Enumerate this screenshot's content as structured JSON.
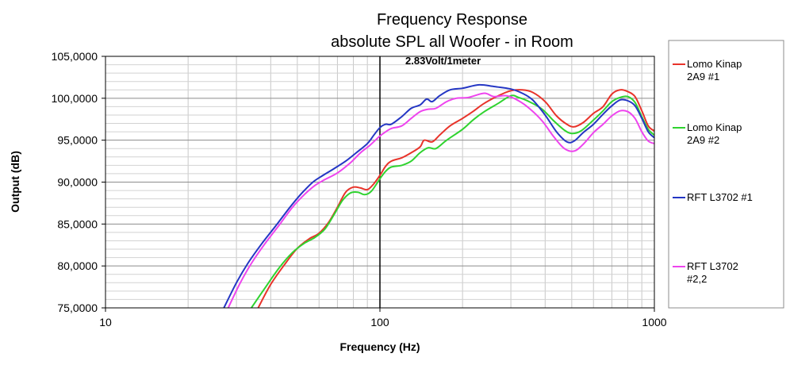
{
  "chart_data": {
    "type": "line",
    "title": "Frequency Response",
    "subtitle": "absolute SPL all Woofer - in Room",
    "xlabel": "Frequency (Hz)",
    "ylabel": "Output (dB)",
    "xscale": "log",
    "xlim": [
      10,
      1000
    ],
    "ylim": [
      75,
      105
    ],
    "xticks": [
      10,
      100,
      1000
    ],
    "xtick_labels": [
      "10",
      "100",
      "1000"
    ],
    "yticks": [
      75,
      80,
      85,
      90,
      95,
      100,
      105
    ],
    "ytick_labels": [
      "75,0000",
      "80,0000",
      "85,0000",
      "90,0000",
      "95,0000",
      "100,0000",
      "105,0000"
    ],
    "grid": true,
    "legend_position": "right",
    "annotation": {
      "text": "2.83Volt/1meter",
      "x": 100
    },
    "series": [
      {
        "name": "Lomo Kinap 2A9 #1",
        "legend_lines": [
          "Lomo Kinap",
          "2A9 #1"
        ],
        "color": "#e8332a",
        "points": [
          [
            36,
            75
          ],
          [
            40,
            77.8
          ],
          [
            45,
            80.2
          ],
          [
            50,
            82.1
          ],
          [
            55,
            83.2
          ],
          [
            60,
            83.9
          ],
          [
            65,
            85.2
          ],
          [
            70,
            87
          ],
          [
            75,
            88.8
          ],
          [
            80,
            89.4
          ],
          [
            85,
            89.3
          ],
          [
            90,
            89.1
          ],
          [
            95,
            89.8
          ],
          [
            100,
            90.8
          ],
          [
            105,
            91.9
          ],
          [
            110,
            92.5
          ],
          [
            120,
            92.9
          ],
          [
            130,
            93.5
          ],
          [
            140,
            94.2
          ],
          [
            145,
            95
          ],
          [
            155,
            94.8
          ],
          [
            165,
            95.6
          ],
          [
            180,
            96.7
          ],
          [
            200,
            97.6
          ],
          [
            220,
            98.5
          ],
          [
            240,
            99.4
          ],
          [
            270,
            100.3
          ],
          [
            300,
            100.9
          ],
          [
            330,
            101
          ],
          [
            360,
            100.7
          ],
          [
            400,
            99.6
          ],
          [
            440,
            97.9
          ],
          [
            480,
            96.9
          ],
          [
            510,
            96.6
          ],
          [
            550,
            97.1
          ],
          [
            600,
            98.2
          ],
          [
            650,
            99
          ],
          [
            700,
            100.5
          ],
          [
            750,
            101
          ],
          [
            800,
            100.8
          ],
          [
            850,
            100.2
          ],
          [
            900,
            98.5
          ],
          [
            950,
            96.7
          ],
          [
            1000,
            96.1
          ]
        ]
      },
      {
        "name": "Lomo Kinap 2A9 #2",
        "legend_lines": [
          "Lomo Kinap",
          "2A9 #2"
        ],
        "color": "#2fd32f",
        "points": [
          [
            34,
            75
          ],
          [
            38,
            77.3
          ],
          [
            43,
            79.8
          ],
          [
            48,
            81.6
          ],
          [
            53,
            82.7
          ],
          [
            58,
            83.4
          ],
          [
            63,
            84.4
          ],
          [
            68,
            86.1
          ],
          [
            73,
            87.8
          ],
          [
            78,
            88.7
          ],
          [
            83,
            88.8
          ],
          [
            88,
            88.5
          ],
          [
            93,
            88.9
          ],
          [
            100,
            90.4
          ],
          [
            105,
            91.3
          ],
          [
            110,
            91.8
          ],
          [
            120,
            92
          ],
          [
            130,
            92.5
          ],
          [
            140,
            93.5
          ],
          [
            150,
            94.1
          ],
          [
            160,
            94
          ],
          [
            175,
            95
          ],
          [
            200,
            96.3
          ],
          [
            220,
            97.5
          ],
          [
            240,
            98.4
          ],
          [
            270,
            99.4
          ],
          [
            300,
            100.3
          ],
          [
            320,
            100.1
          ],
          [
            350,
            99.6
          ],
          [
            390,
            98.7
          ],
          [
            430,
            97.3
          ],
          [
            470,
            96.2
          ],
          [
            500,
            95.8
          ],
          [
            540,
            96.1
          ],
          [
            600,
            97.4
          ],
          [
            650,
            98.5
          ],
          [
            700,
            99.6
          ],
          [
            750,
            100.1
          ],
          [
            800,
            100.2
          ],
          [
            850,
            99.5
          ],
          [
            900,
            97.8
          ],
          [
            950,
            96.3
          ],
          [
            1000,
            95.6
          ]
        ]
      },
      {
        "name": "RFT L3702 #1",
        "legend_lines": [
          "RFT L3702 #1"
        ],
        "color": "#2436c4",
        "points": [
          [
            27,
            75
          ],
          [
            30,
            78
          ],
          [
            33,
            80.3
          ],
          [
            37,
            82.6
          ],
          [
            42,
            84.9
          ],
          [
            47,
            87
          ],
          [
            52,
            88.7
          ],
          [
            57,
            90
          ],
          [
            62,
            90.8
          ],
          [
            68,
            91.6
          ],
          [
            75,
            92.5
          ],
          [
            82,
            93.5
          ],
          [
            90,
            94.6
          ],
          [
            95,
            95.6
          ],
          [
            100,
            96.5
          ],
          [
            105,
            96.9
          ],
          [
            110,
            96.9
          ],
          [
            120,
            97.8
          ],
          [
            130,
            98.8
          ],
          [
            140,
            99.2
          ],
          [
            148,
            99.9
          ],
          [
            155,
            99.6
          ],
          [
            165,
            100.3
          ],
          [
            180,
            101
          ],
          [
            200,
            101.2
          ],
          [
            230,
            101.6
          ],
          [
            260,
            101.4
          ],
          [
            300,
            101.1
          ],
          [
            330,
            100.6
          ],
          [
            360,
            99.8
          ],
          [
            400,
            98
          ],
          [
            440,
            96
          ],
          [
            480,
            94.8
          ],
          [
            510,
            94.9
          ],
          [
            550,
            95.9
          ],
          [
            600,
            96.9
          ],
          [
            650,
            98.1
          ],
          [
            700,
            99.1
          ],
          [
            750,
            99.8
          ],
          [
            800,
            99.7
          ],
          [
            850,
            99.1
          ],
          [
            900,
            97.6
          ],
          [
            950,
            96
          ],
          [
            1000,
            95.3
          ]
        ]
      },
      {
        "name": "RFT L3702 #2,2",
        "legend_lines": [
          "RFT L3702",
          "#2,2"
        ],
        "color": "#ee44ee",
        "points": [
          [
            28,
            75
          ],
          [
            31,
            78
          ],
          [
            34,
            80.3
          ],
          [
            38,
            82.6
          ],
          [
            43,
            84.9
          ],
          [
            48,
            87
          ],
          [
            53,
            88.5
          ],
          [
            58,
            89.6
          ],
          [
            63,
            90.3
          ],
          [
            70,
            91.1
          ],
          [
            78,
            92.3
          ],
          [
            85,
            93.5
          ],
          [
            92,
            94.4
          ],
          [
            100,
            95.5
          ],
          [
            105,
            96
          ],
          [
            110,
            96.4
          ],
          [
            120,
            96.7
          ],
          [
            130,
            97.6
          ],
          [
            140,
            98.4
          ],
          [
            150,
            98.7
          ],
          [
            160,
            98.8
          ],
          [
            175,
            99.6
          ],
          [
            190,
            100
          ],
          [
            210,
            100.1
          ],
          [
            240,
            100.6
          ],
          [
            260,
            100.2
          ],
          [
            290,
            100.3
          ],
          [
            320,
            99.7
          ],
          [
            350,
            98.8
          ],
          [
            390,
            97.3
          ],
          [
            430,
            95.4
          ],
          [
            470,
            94
          ],
          [
            510,
            93.7
          ],
          [
            550,
            94.5
          ],
          [
            600,
            95.9
          ],
          [
            650,
            96.9
          ],
          [
            700,
            97.9
          ],
          [
            750,
            98.5
          ],
          [
            800,
            98.4
          ],
          [
            850,
            97.6
          ],
          [
            900,
            96
          ],
          [
            950,
            94.9
          ],
          [
            1000,
            94.6
          ]
        ]
      }
    ]
  }
}
